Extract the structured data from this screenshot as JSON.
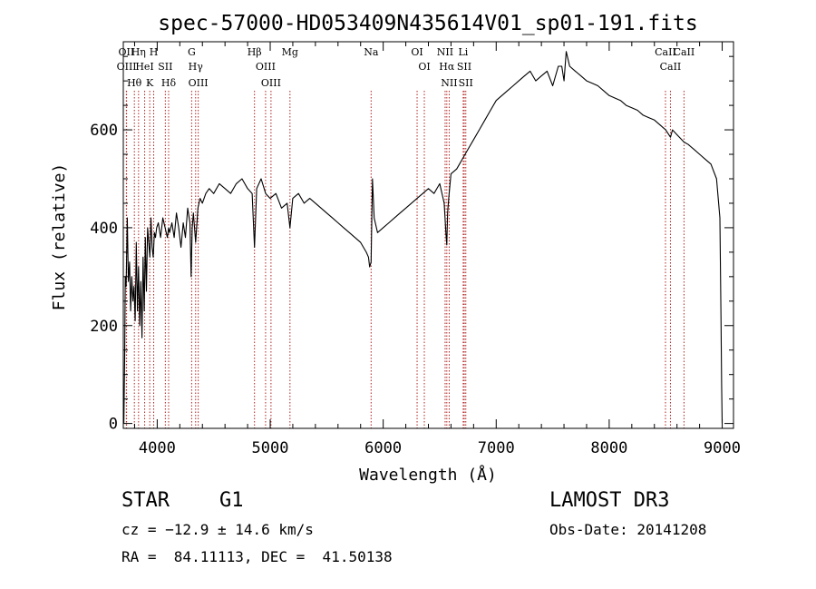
{
  "chart_data": {
    "type": "line",
    "title": "spec-57000-HD053409N435614V01_sp01-191.fits",
    "xlabel": "Wavelength (Å)",
    "ylabel": "Flux (relative)",
    "xlim": [
      3700,
      9100
    ],
    "ylim": [
      -10,
      780
    ],
    "xticks": [
      4000,
      5000,
      6000,
      7000,
      8000,
      9000
    ],
    "xtick_labels": [
      "4000",
      "5000",
      "6000",
      "7000",
      "8000",
      "9000"
    ],
    "yticks": [
      0,
      200,
      400,
      600
    ],
    "ytick_labels": [
      "0",
      "200",
      "400",
      "600"
    ],
    "line_color": "#000000",
    "marker_color": "#b22222",
    "series": [
      {
        "name": "spectrum",
        "x": [
          3705,
          3712,
          3718,
          3725,
          3735,
          3745,
          3755,
          3765,
          3775,
          3785,
          3795,
          3805,
          3815,
          3825,
          3835,
          3845,
          3855,
          3865,
          3875,
          3885,
          3895,
          3905,
          3915,
          3925,
          3935,
          3945,
          3955,
          3965,
          3975,
          3985,
          3995,
          4010,
          4030,
          4050,
          4070,
          4090,
          4101,
          4110,
          4130,
          4150,
          4170,
          4190,
          4210,
          4230,
          4250,
          4270,
          4290,
          4300,
          4310,
          4320,
          4340,
          4360,
          4380,
          4400,
          4430,
          4460,
          4500,
          4550,
          4600,
          4650,
          4700,
          4750,
          4800,
          4840,
          4861,
          4880,
          4920,
          4960,
          5000,
          5050,
          5100,
          5150,
          5175,
          5200,
          5250,
          5300,
          5350,
          5400,
          5450,
          5500,
          5550,
          5600,
          5650,
          5700,
          5750,
          5800,
          5850,
          5870,
          5880,
          5893,
          5905,
          5920,
          5950,
          6000,
          6050,
          6100,
          6150,
          6200,
          6250,
          6300,
          6350,
          6400,
          6450,
          6500,
          6540,
          6555,
          6563,
          6570,
          6580,
          6600,
          6650,
          6700,
          6750,
          6800,
          6850,
          6900,
          6950,
          7000,
          7050,
          7100,
          7150,
          7200,
          7250,
          7300,
          7350,
          7400,
          7450,
          7500,
          7550,
          7580,
          7600,
          7620,
          7650,
          7700,
          7750,
          7800,
          7850,
          7900,
          7950,
          8000,
          8050,
          8100,
          8150,
          8200,
          8250,
          8300,
          8350,
          8400,
          8450,
          8500,
          8542,
          8560,
          8600,
          8662,
          8700,
          8750,
          8800,
          8850,
          8900,
          8950,
          8980,
          8990,
          8995,
          9000
        ],
        "values": [
          0,
          135,
          300,
          280,
          420,
          290,
          330,
          230,
          300,
          250,
          280,
          210,
          370,
          230,
          320,
          200,
          290,
          175,
          340,
          230,
          380,
          270,
          400,
          370,
          340,
          420,
          360,
          340,
          390,
          380,
          400,
          410,
          380,
          420,
          400,
          380,
          400,
          390,
          410,
          380,
          430,
          400,
          360,
          410,
          380,
          440,
          410,
          300,
          400,
          430,
          370,
          440,
          460,
          450,
          470,
          480,
          470,
          490,
          480,
          470,
          490,
          500,
          480,
          470,
          360,
          480,
          500,
          470,
          460,
          470,
          440,
          450,
          400,
          460,
          470,
          450,
          460,
          450,
          440,
          430,
          420,
          410,
          400,
          390,
          380,
          370,
          350,
          340,
          320,
          330,
          500,
          420,
          390,
          400,
          410,
          420,
          430,
          440,
          450,
          460,
          470,
          480,
          470,
          490,
          450,
          390,
          365,
          430,
          460,
          510,
          520,
          540,
          560,
          580,
          600,
          620,
          640,
          660,
          670,
          680,
          690,
          700,
          710,
          720,
          700,
          710,
          720,
          690,
          730,
          730,
          700,
          760,
          730,
          720,
          710,
          700,
          695,
          690,
          680,
          670,
          665,
          660,
          650,
          645,
          640,
          630,
          625,
          620,
          610,
          600,
          585,
          600,
          590,
          575,
          570,
          560,
          550,
          540,
          530,
          500,
          420,
          200,
          80,
          0
        ]
      }
    ],
    "lines": [
      {
        "name": "Hθ",
        "wavelength": 3798
      },
      {
        "name": "OII",
        "wavelength": 3727
      },
      {
        "name": "OIII",
        "wavelength": 3729
      },
      {
        "name": "K",
        "wavelength": 3934
      },
      {
        "name": "H",
        "wavelength": 3969
      },
      {
        "name": "HeI",
        "wavelength": 3889
      },
      {
        "name": "Hη",
        "wavelength": 3835
      },
      {
        "name": "Hδ",
        "wavelength": 4101
      },
      {
        "name": "SII",
        "wavelength": 4072
      },
      {
        "name": "OIII",
        "wavelength": 4363
      },
      {
        "name": "Hγ",
        "wavelength": 4340
      },
      {
        "name": "G",
        "wavelength": 4305
      },
      {
        "name": "Hβ",
        "wavelength": 4861
      },
      {
        "name": "OIII",
        "wavelength": 4959
      },
      {
        "name": "OIII",
        "wavelength": 5007
      },
      {
        "name": "Mg",
        "wavelength": 5175
      },
      {
        "name": "Na",
        "wavelength": 5893
      },
      {
        "name": "OI",
        "wavelength": 6300
      },
      {
        "name": "OI",
        "wavelength": 6364
      },
      {
        "name": "Hα",
        "wavelength": 6563
      },
      {
        "name": "NII",
        "wavelength": 6548
      },
      {
        "name": "NII",
        "wavelength": 6584
      },
      {
        "name": "SII",
        "wavelength": 6717
      },
      {
        "name": "Li",
        "wavelength": 6708
      },
      {
        "name": "SII",
        "wavelength": 6731
      },
      {
        "name": "CaII",
        "wavelength": 8498
      },
      {
        "name": "CaII",
        "wavelength": 8542
      },
      {
        "name": "CaII",
        "wavelength": 8662
      }
    ]
  },
  "info": {
    "object_class": "STAR",
    "subclass": "G1",
    "survey": "LAMOST DR3",
    "redshift": "cz = −12.9 ± 14.6 km/s",
    "obs_date": "Obs-Date: 20141208",
    "coords": "RA =  84.11113, DEC =  41.50138"
  }
}
